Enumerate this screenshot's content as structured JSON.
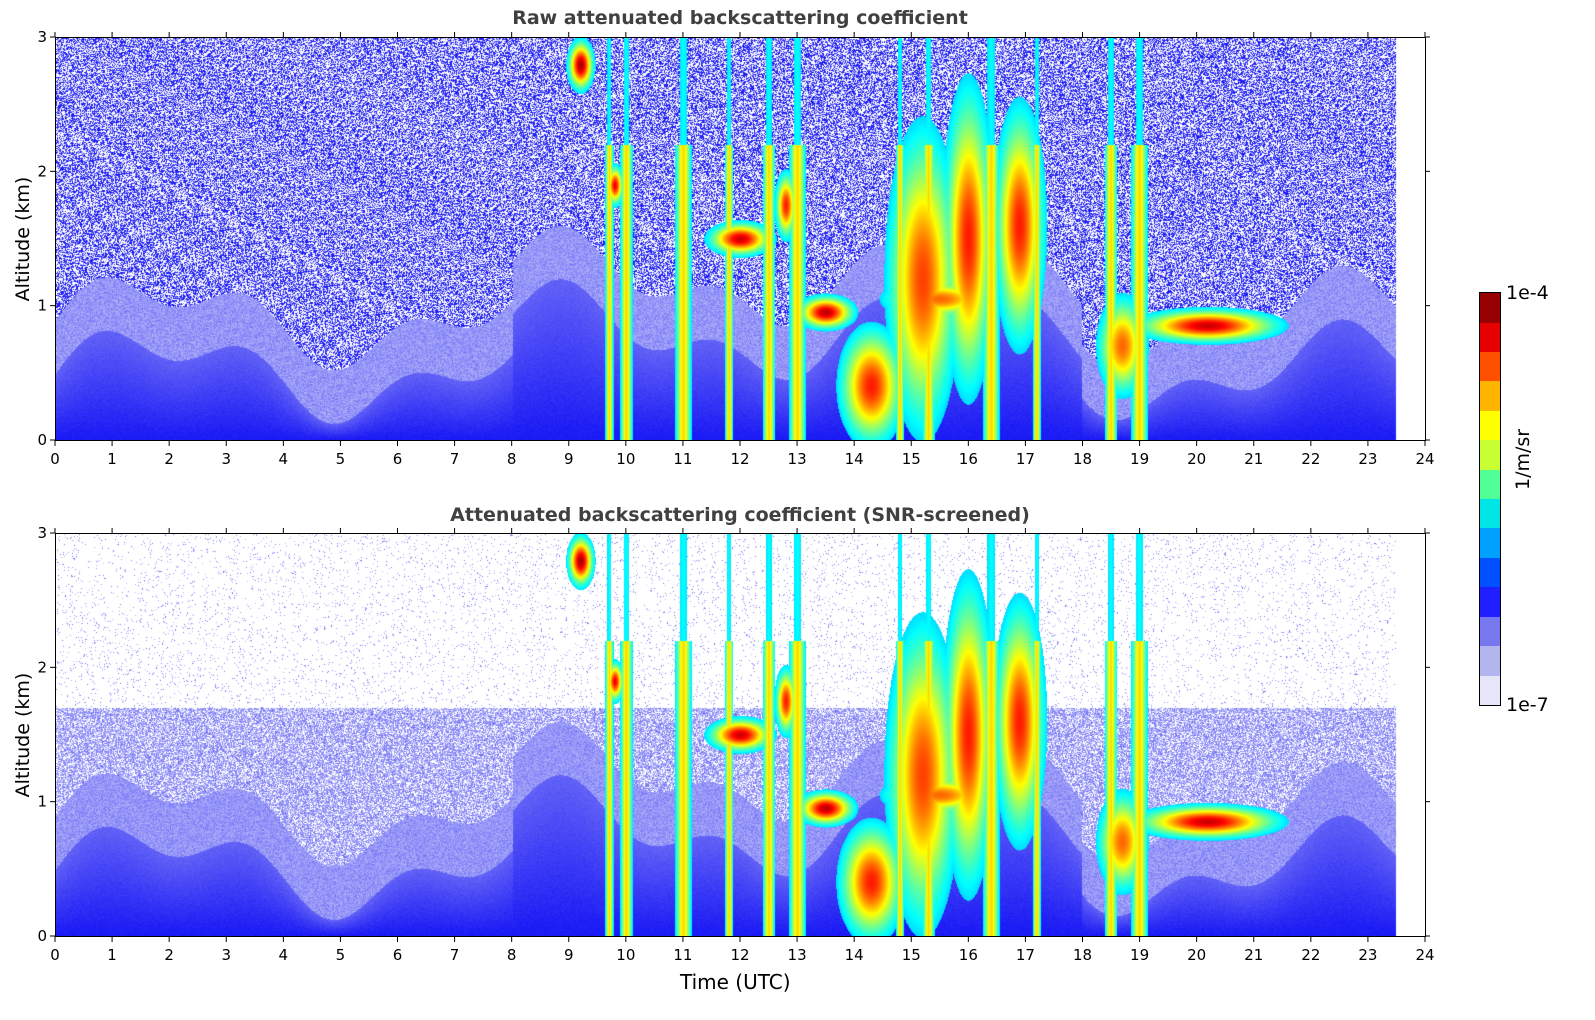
{
  "chart_data": [
    {
      "type": "heatmap",
      "title": "Raw attenuated backscattering coefficient",
      "xlabel": "",
      "ylabel": "Altitude (km)",
      "xlim": [
        0,
        24
      ],
      "ylim": [
        0,
        3
      ],
      "xticks": [
        "0",
        "1",
        "2",
        "3",
        "4",
        "5",
        "6",
        "7",
        "8",
        "9",
        "10",
        "11",
        "12",
        "13",
        "14",
        "15",
        "16",
        "17",
        "18",
        "19",
        "20",
        "21",
        "22",
        "23",
        "24"
      ],
      "yticks": [
        "0",
        "1",
        "2",
        "3"
      ],
      "data_end_hour": 23.5,
      "features": [
        {
          "name": "aerosol boundary layer",
          "x_range": [
            0,
            23.5
          ],
          "y_range": [
            0,
            0.8
          ],
          "level": "low"
        },
        {
          "name": "elevated cloud",
          "x_range": [
            9.0,
            9.5
          ],
          "y_range": [
            2.6,
            3.0
          ],
          "level": "high"
        },
        {
          "name": "cloud layer",
          "x_range": [
            11.6,
            12.8
          ],
          "y_range": [
            1.3,
            1.7
          ],
          "level": "high"
        },
        {
          "name": "cloud layer",
          "x_range": [
            13.0,
            14.0
          ],
          "y_range": [
            0.8,
            1.1
          ],
          "level": "high"
        },
        {
          "name": "convective cloud",
          "x_range": [
            13.8,
            17.4
          ],
          "y_range": [
            0,
            2.6
          ],
          "level": "high"
        },
        {
          "name": "stratocumulus",
          "x_range": [
            18.2,
            21.7
          ],
          "y_range": [
            0.6,
            1.1
          ],
          "level": "high"
        }
      ]
    },
    {
      "type": "heatmap",
      "title": "Attenuated backscattering coefficient (SNR-screened)",
      "xlabel": "Time (UTC)",
      "ylabel": "Altitude (km)",
      "xlim": [
        0,
        24
      ],
      "ylim": [
        0,
        3
      ],
      "xticks": [
        "0",
        "1",
        "2",
        "3",
        "4",
        "5",
        "6",
        "7",
        "8",
        "9",
        "10",
        "11",
        "12",
        "13",
        "14",
        "15",
        "16",
        "17",
        "18",
        "19",
        "20",
        "21",
        "22",
        "23",
        "24"
      ],
      "yticks": [
        "0",
        "1",
        "2",
        "3"
      ],
      "data_end_hour": 23.5,
      "features": [
        {
          "name": "aerosol boundary layer",
          "x_range": [
            0,
            23.5
          ],
          "y_range": [
            0,
            0.8
          ],
          "level": "low"
        },
        {
          "name": "elevated cloud",
          "x_range": [
            9.0,
            9.5
          ],
          "y_range": [
            2.6,
            3.0
          ],
          "level": "high"
        },
        {
          "name": "cloud layer",
          "x_range": [
            11.6,
            12.8
          ],
          "y_range": [
            1.3,
            1.7
          ],
          "level": "high"
        },
        {
          "name": "cloud layer",
          "x_range": [
            13.0,
            14.0
          ],
          "y_range": [
            0.8,
            1.1
          ],
          "level": "high"
        },
        {
          "name": "convective cloud",
          "x_range": [
            13.8,
            17.4
          ],
          "y_range": [
            0,
            2.6
          ],
          "level": "high"
        },
        {
          "name": "stratocumulus",
          "x_range": [
            18.2,
            21.7
          ],
          "y_range": [
            0.6,
            1.1
          ],
          "level": "high"
        }
      ]
    }
  ],
  "colorbar": {
    "max_label": "1e-4",
    "min_label": "1e-7",
    "unit_label": "1/m/sr",
    "colors": [
      "#e6e6f8",
      "#b4b4ee",
      "#7878ee",
      "#1e1eff",
      "#0050ff",
      "#00a0ff",
      "#00e6e6",
      "#50ff96",
      "#c8ff32",
      "#ffff00",
      "#ffb400",
      "#ff5000",
      "#e60000",
      "#960000"
    ]
  }
}
